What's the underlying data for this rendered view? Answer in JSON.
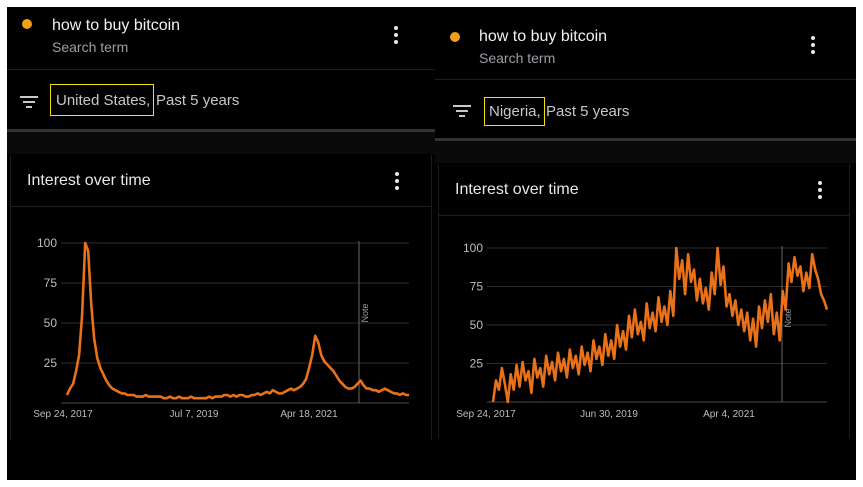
{
  "panels": [
    {
      "id": "us",
      "search_term": {
        "title": "how to buy bitcoin",
        "subtitle": "Search term"
      },
      "filter": {
        "region": "United States,",
        "range": "Past 5 years"
      },
      "card_title": "Interest over time",
      "note_label": "Note"
    },
    {
      "id": "ng",
      "search_term": {
        "title": "how to buy bitcoin",
        "subtitle": "Search term"
      },
      "filter": {
        "region": "Nigeria,",
        "range": "Past 5 years"
      },
      "card_title": "Interest over time",
      "note_label": "Note"
    }
  ],
  "colors": {
    "line": "#e8711a",
    "dot": "#f0a018",
    "highlight": "#f5e400",
    "grid": "#2e2e2e"
  },
  "chart_data": [
    {
      "type": "line",
      "title": "Interest over time",
      "yticks": [
        25,
        50,
        75,
        100
      ],
      "ylim": [
        0,
        100
      ],
      "xtick_labels": [
        "Sep 24, 2017",
        "Jul 7, 2019",
        "Apr 18, 2021"
      ],
      "series": [
        {
          "name": "how to buy bitcoin",
          "values": [
            5,
            9,
            12,
            20,
            30,
            55,
            100,
            95,
            62,
            40,
            28,
            22,
            18,
            14,
            11,
            9,
            8,
            7,
            6,
            6,
            5,
            5,
            5,
            4,
            4,
            4,
            5,
            4,
            4,
            4,
            4,
            4,
            3,
            3,
            4,
            3,
            3,
            4,
            3,
            3,
            3,
            4,
            3,
            3,
            3,
            3,
            3,
            4,
            3,
            4,
            4,
            4,
            5,
            5,
            4,
            5,
            4,
            5,
            5,
            4,
            4,
            5,
            5,
            6,
            5,
            6,
            7,
            6,
            8,
            7,
            6,
            6,
            7,
            8,
            9,
            8,
            9,
            10,
            12,
            15,
            22,
            30,
            42,
            38,
            30,
            26,
            24,
            22,
            20,
            17,
            14,
            12,
            10,
            9,
            9,
            10,
            12,
            14,
            11,
            9,
            9,
            8,
            8,
            7,
            8,
            9,
            8,
            7,
            6,
            6,
            5,
            6,
            5,
            5
          ]
        }
      ],
      "grid": true
    },
    {
      "type": "line",
      "title": "Interest over time",
      "yticks": [
        25,
        50,
        75,
        100
      ],
      "ylim": [
        0,
        100
      ],
      "xtick_labels": [
        "Sep 24, 2017",
        "Jun 30, 2019",
        "Apr 4, 2021"
      ],
      "series": [
        {
          "name": "how to buy bitcoin",
          "values": [
            0,
            14,
            8,
            22,
            12,
            0,
            18,
            8,
            24,
            10,
            26,
            14,
            20,
            6,
            28,
            16,
            22,
            10,
            30,
            18,
            26,
            14,
            32,
            20,
            28,
            16,
            34,
            22,
            30,
            18,
            36,
            24,
            32,
            20,
            40,
            28,
            36,
            24,
            44,
            30,
            40,
            28,
            50,
            36,
            46,
            34,
            56,
            42,
            60,
            44,
            52,
            40,
            64,
            48,
            58,
            46,
            68,
            52,
            62,
            50,
            72,
            56,
            100,
            80,
            92,
            70,
            96,
            78,
            86,
            66,
            80,
            64,
            74,
            60,
            84,
            70,
            100,
            76,
            88,
            62,
            70,
            56,
            66,
            50,
            60,
            46,
            58,
            40,
            54,
            36,
            62,
            48,
            66,
            52,
            70,
            44,
            58,
            40,
            72,
            60,
            90,
            78,
            94,
            82,
            88,
            72,
            84,
            74,
            96,
            86,
            80,
            70,
            66,
            60
          ]
        }
      ],
      "grid": true
    }
  ]
}
